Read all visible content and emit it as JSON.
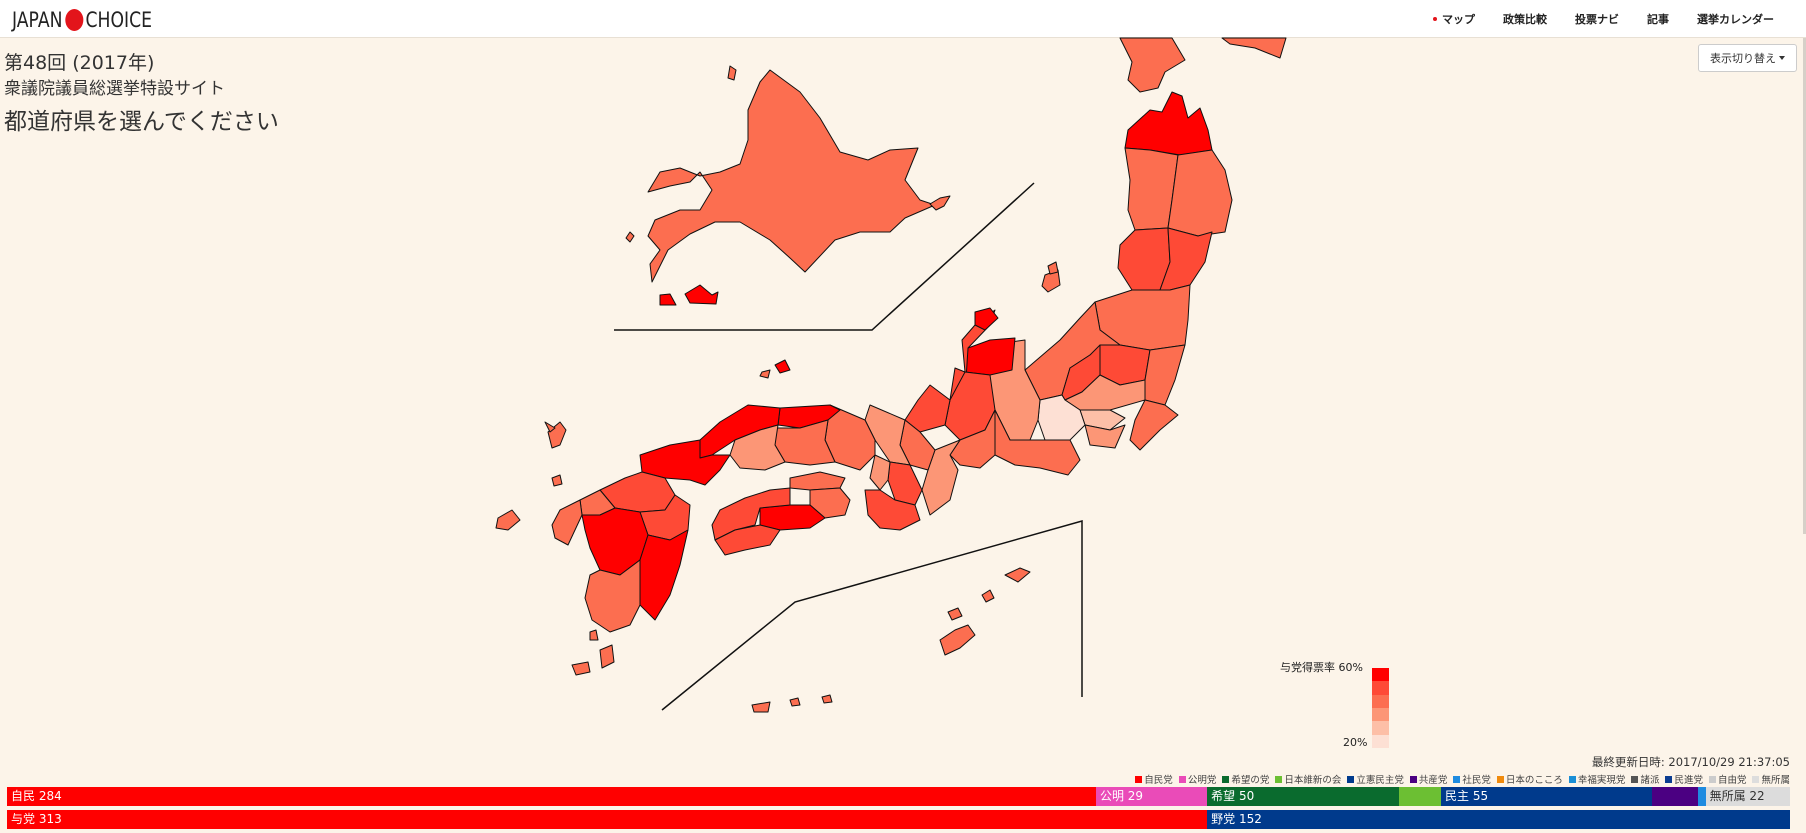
{
  "header": {
    "logo_left": "JAPAN",
    "logo_right": "CHOICE",
    "nav": [
      {
        "label": "マップ",
        "current": true
      },
      {
        "label": "政策比較"
      },
      {
        "label": "投票ナビ"
      },
      {
        "label": "記事"
      },
      {
        "label": "選挙カレンダー"
      }
    ]
  },
  "heading": {
    "edition": "第48回 (2017年)",
    "site": "衆議院議員総選挙特設サイト",
    "prompt": "都道府県を選んでください"
  },
  "toggle": {
    "label": "表示切り替え"
  },
  "legend": {
    "title": "与党得票率 60%",
    "low": "20%",
    "colors": [
      "#ff0000",
      "#fe4a36",
      "#fc6e50",
      "#fc9676",
      "#fdbfa7",
      "#fde0d4"
    ]
  },
  "updated": "最終更新日時: 2017/10/29 21:37:05",
  "parties": [
    {
      "name": "自民党",
      "color": "#ff0000"
    },
    {
      "name": "公明党",
      "color": "#ea4bb8"
    },
    {
      "name": "希望の党",
      "color": "#0a6b2e"
    },
    {
      "name": "日本維新の会",
      "color": "#6cbf33"
    },
    {
      "name": "立憲民主党",
      "color": "#003a8c"
    },
    {
      "name": "共産党",
      "color": "#4b0082"
    },
    {
      "name": "社民党",
      "color": "#1e8be0"
    },
    {
      "name": "日本のこころ",
      "color": "#f08a0c"
    },
    {
      "name": "幸福実現党",
      "color": "#1a8fd6"
    },
    {
      "name": "諸派",
      "color": "#555555"
    },
    {
      "name": "民進党",
      "color": "#0b3d91"
    },
    {
      "name": "自由党",
      "color": "#cccccc"
    },
    {
      "name": "無所属",
      "color": "#dddddd"
    }
  ],
  "seats": {
    "total": 465,
    "top": [
      {
        "label": "自民 284",
        "seats": 284,
        "color": "#ff0000",
        "dark": false
      },
      {
        "label": "公明 29",
        "seats": 29,
        "color": "#ea4bb8",
        "dark": false
      },
      {
        "label": "希望 50",
        "seats": 50,
        "color": "#0a6b2e",
        "dark": false
      },
      {
        "label": "",
        "seats": 11,
        "color": "#6cbf33",
        "dark": false
      },
      {
        "label": "民主 55",
        "seats": 55,
        "color": "#003a8c",
        "dark": false
      },
      {
        "label": "",
        "seats": 12,
        "color": "#4b0082",
        "dark": false
      },
      {
        "label": "",
        "seats": 2,
        "color": "#1e8be0",
        "dark": false
      },
      {
        "label": "無所属 22",
        "seats": 22,
        "color": "#dcdcdc",
        "dark": true
      }
    ],
    "bottom": [
      {
        "label": "与党 313",
        "seats": 313,
        "color": "#ff0000",
        "dark": false
      },
      {
        "label": "野党 152",
        "seats": 152,
        "color": "#003a8c",
        "dark": false
      }
    ]
  }
}
